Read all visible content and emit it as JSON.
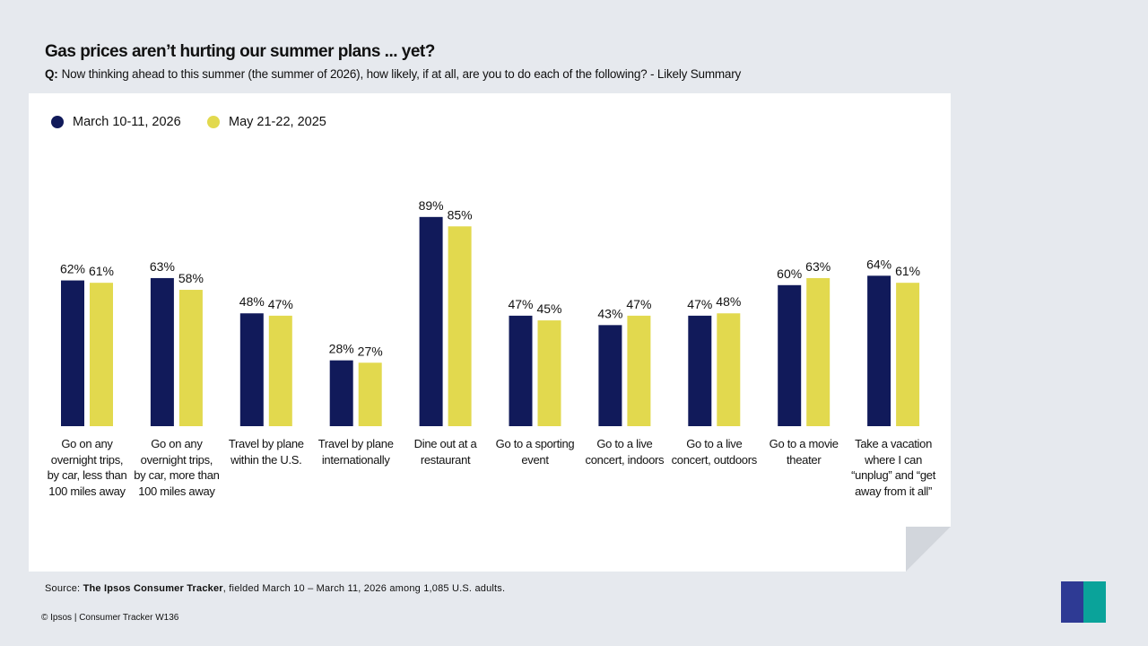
{
  "title": "Gas prices aren’t hurting our summer plans ... yet?",
  "question": {
    "prefix": "Q:",
    "text": "Now thinking ahead to this summer (the summer of 2026), how likely, if at all, are you to do each of the following? - Likely Summary"
  },
  "chart_data": {
    "type": "bar",
    "categories": [
      "Go on any overnight trips, by car, less than 100 miles away",
      "Go on any overnight trips, by car, more than 100 miles away",
      "Travel by plane within the U.S.",
      "Travel by plane internationally",
      "Dine out at a restaurant",
      "Go to a sporting event",
      "Go to a live concert, indoors",
      "Go to a live concert, outdoors",
      "Go to a movie theater",
      "Take a vacation where I can “unplug” and “get away from it all”"
    ],
    "series": [
      {
        "name": "March 10-11, 2026",
        "color": "#111a5a",
        "values": [
          62,
          63,
          48,
          28,
          89,
          47,
          43,
          47,
          60,
          64
        ]
      },
      {
        "name": "May 21-22, 2025",
        "color": "#e2d94e",
        "values": [
          61,
          58,
          47,
          27,
          85,
          45,
          47,
          48,
          63,
          61
        ]
      }
    ],
    "ylim": [
      0,
      100
    ],
    "value_suffix": "%",
    "grid": false,
    "legend": "top-left"
  },
  "source": {
    "prefix": "Source: ",
    "bold": "The Ipsos Consumer Tracker",
    "rest": ", fielded March 10 – March 11, 2026 among 1,085 U.S. adults."
  },
  "copyright": "© Ipsos | Consumer Tracker W136",
  "logo": "Ipsos"
}
